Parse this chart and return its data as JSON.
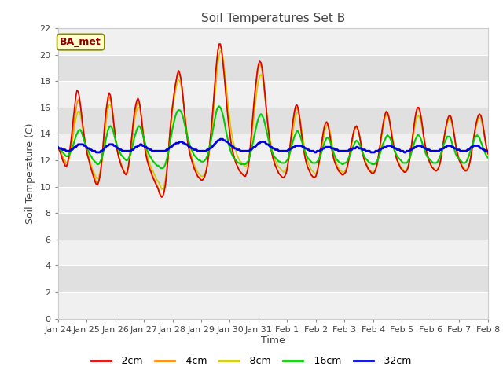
{
  "title": "Soil Temperatures Set B",
  "xlabel": "Time",
  "ylabel": "Soil Temperature (C)",
  "annotation": "BA_met",
  "ylim": [
    0,
    22
  ],
  "yticks": [
    0,
    2,
    4,
    6,
    8,
    10,
    12,
    14,
    16,
    18,
    20,
    22
  ],
  "xtick_labels": [
    "Jan 24",
    "Jan 25",
    "Jan 26",
    "Jan 27",
    "Jan 28",
    "Jan 29",
    "Jan 30",
    "Jan 31",
    "Feb 1",
    "Feb 2",
    "Feb 3",
    "Feb 4",
    "Feb 5",
    "Feb 6",
    "Feb 7",
    "Feb 8"
  ],
  "colors": {
    "-2cm": "#dd0000",
    "-4cm": "#ff8800",
    "-8cm": "#cccc00",
    "-16cm": "#00cc00",
    "-32cm": "#0000dd"
  },
  "legend_labels": [
    "-2cm",
    "-4cm",
    "-8cm",
    "-16cm",
    "-32cm"
  ],
  "fig_bg": "#ffffff",
  "plot_bg_light": "#f0f0f0",
  "plot_bg_dark": "#e0e0e0",
  "grid_color": "#ffffff",
  "n_points": 361,
  "t_2cm": [
    13.0,
    12.8,
    12.6,
    12.3,
    12.0,
    11.8,
    11.6,
    11.5,
    11.7,
    12.2,
    12.8,
    13.5,
    14.3,
    15.2,
    16.0,
    16.8,
    17.3,
    17.2,
    16.8,
    16.1,
    15.3,
    14.5,
    13.8,
    13.2,
    12.7,
    12.3,
    12.0,
    11.6,
    11.3,
    11.0,
    10.7,
    10.4,
    10.2,
    10.1,
    10.3,
    10.7,
    11.3,
    12.2,
    13.3,
    14.5,
    15.5,
    16.2,
    16.8,
    17.1,
    16.9,
    16.3,
    15.5,
    14.6,
    13.8,
    13.1,
    12.6,
    12.2,
    11.9,
    11.6,
    11.4,
    11.2,
    11.0,
    10.9,
    11.1,
    11.5,
    12.2,
    13.0,
    13.9,
    14.8,
    15.6,
    16.1,
    16.5,
    16.7,
    16.5,
    16.0,
    15.2,
    14.3,
    13.5,
    12.8,
    12.3,
    11.9,
    11.6,
    11.3,
    11.1,
    10.8,
    10.6,
    10.4,
    10.2,
    10.0,
    9.8,
    9.5,
    9.3,
    9.2,
    9.3,
    9.6,
    10.1,
    10.9,
    11.9,
    13.1,
    14.3,
    15.3,
    16.1,
    16.8,
    17.5,
    18.0,
    18.5,
    18.8,
    18.6,
    18.2,
    17.5,
    16.6,
    15.6,
    14.7,
    13.9,
    13.2,
    12.7,
    12.3,
    12.0,
    11.7,
    11.4,
    11.2,
    11.0,
    10.8,
    10.7,
    10.6,
    10.5,
    10.5,
    10.6,
    10.8,
    11.1,
    11.6,
    12.3,
    13.1,
    14.0,
    15.0,
    16.1,
    17.3,
    18.5,
    19.5,
    20.3,
    20.8,
    20.8,
    20.4,
    19.6,
    18.7,
    17.7,
    16.6,
    15.6,
    14.7,
    14.0,
    13.3,
    12.8,
    12.4,
    12.1,
    11.8,
    11.6,
    11.4,
    11.2,
    11.1,
    11.0,
    10.9,
    10.8,
    10.8,
    11.0,
    11.3,
    12.0,
    12.9,
    14.0,
    15.1,
    16.2,
    17.2,
    18.0,
    18.8,
    19.3,
    19.5,
    19.4,
    19.0,
    18.3,
    17.4,
    16.4,
    15.4,
    14.5,
    13.7,
    13.1,
    12.6,
    12.2,
    11.9,
    11.6,
    11.4,
    11.2,
    11.0,
    10.9,
    10.8,
    10.7,
    10.7,
    10.8,
    11.0,
    11.4,
    12.0,
    12.8,
    13.6,
    14.4,
    15.1,
    15.7,
    16.1,
    16.2,
    16.0,
    15.5,
    14.8,
    14.0,
    13.3,
    12.7,
    12.2,
    11.8,
    11.5,
    11.3,
    11.1,
    10.9,
    10.8,
    10.7,
    10.7,
    10.8,
    11.1,
    11.5,
    12.1,
    12.8,
    13.4,
    14.0,
    14.5,
    14.8,
    14.9,
    14.7,
    14.3,
    13.7,
    13.0,
    12.5,
    12.1,
    11.8,
    11.6,
    11.4,
    11.2,
    11.1,
    11.0,
    10.9,
    10.9,
    11.0,
    11.1,
    11.4,
    11.8,
    12.3,
    12.9,
    13.4,
    13.9,
    14.3,
    14.5,
    14.6,
    14.4,
    14.1,
    13.6,
    13.1,
    12.6,
    12.2,
    11.9,
    11.7,
    11.5,
    11.3,
    11.2,
    11.1,
    11.0,
    11.0,
    11.1,
    11.3,
    11.6,
    12.1,
    12.7,
    13.3,
    14.0,
    14.6,
    15.1,
    15.5,
    15.7,
    15.6,
    15.3,
    14.8,
    14.2,
    13.6,
    13.1,
    12.7,
    12.3,
    12.0,
    11.8,
    11.6,
    11.4,
    11.3,
    11.2,
    11.1,
    11.1,
    11.2,
    11.4,
    11.8,
    12.4,
    13.1,
    13.8,
    14.5,
    15.2,
    15.7,
    16.0,
    16.0,
    15.8,
    15.3,
    14.7,
    14.0,
    13.4,
    12.9,
    12.5,
    12.2,
    11.9,
    11.7,
    11.5,
    11.4,
    11.3,
    11.2,
    11.2,
    11.3,
    11.5,
    11.8,
    12.3,
    12.9,
    13.5,
    14.1,
    14.6,
    15.0,
    15.3,
    15.4,
    15.3,
    14.9,
    14.4,
    13.8,
    13.2,
    12.7,
    12.3,
    12.0,
    11.8,
    11.6,
    11.4,
    11.3,
    11.2,
    11.2,
    11.3,
    11.5,
    11.9,
    12.4,
    13.0,
    13.6,
    14.2,
    14.7,
    15.1,
    15.4,
    15.5,
    15.4,
    15.1,
    14.6,
    14.0,
    13.4,
    12.9,
    12.5,
    12.2,
    12.0,
    11.8,
    11.6,
    11.5,
    11.4,
    11.3
  ],
  "t_4cm": [
    13.0,
    12.8,
    12.6,
    12.4,
    12.2,
    12.0,
    11.8,
    11.6,
    11.7,
    12.0,
    12.4,
    13.0,
    13.7,
    14.5,
    15.2,
    15.8,
    16.3,
    16.6,
    16.5,
    16.1,
    15.4,
    14.6,
    13.9,
    13.3,
    12.8,
    12.4,
    12.1,
    11.7,
    11.4,
    11.1,
    10.9,
    10.6,
    10.4,
    10.2,
    10.4,
    10.7,
    11.2,
    12.0,
    13.1,
    14.2,
    15.2,
    15.9,
    16.5,
    16.8,
    16.6,
    16.2,
    15.5,
    14.7,
    13.9,
    13.2,
    12.7,
    12.3,
    12.0,
    11.7,
    11.4,
    11.2,
    11.0,
    10.9,
    11.0,
    11.4,
    12.0,
    12.8,
    13.7,
    14.6,
    15.3,
    15.8,
    16.2,
    16.4,
    16.3,
    15.9,
    15.2,
    14.4,
    13.6,
    12.9,
    12.4,
    12.0,
    11.7,
    11.4,
    11.2,
    10.9,
    10.7,
    10.5,
    10.3,
    10.1,
    9.9,
    9.6,
    9.4,
    9.2,
    9.3,
    9.7,
    10.2,
    11.0,
    12.0,
    13.2,
    14.4,
    15.3,
    16.1,
    16.8,
    17.5,
    18.0,
    18.4,
    18.6,
    18.5,
    18.1,
    17.4,
    16.6,
    15.7,
    14.8,
    14.0,
    13.3,
    12.8,
    12.4,
    12.1,
    11.8,
    11.5,
    11.3,
    11.0,
    10.8,
    10.7,
    10.6,
    10.5,
    10.5,
    10.6,
    10.8,
    11.1,
    11.5,
    12.1,
    12.9,
    13.8,
    14.8,
    15.9,
    17.0,
    18.2,
    19.3,
    20.3,
    20.8,
    20.8,
    20.4,
    19.7,
    18.8,
    17.8,
    16.8,
    15.8,
    14.9,
    14.1,
    13.4,
    12.9,
    12.5,
    12.1,
    11.8,
    11.6,
    11.4,
    11.2,
    11.1,
    11.0,
    10.9,
    10.8,
    10.8,
    11.0,
    11.3,
    11.9,
    12.7,
    13.7,
    14.8,
    15.9,
    16.9,
    17.8,
    18.5,
    19.0,
    19.3,
    19.2,
    18.8,
    18.1,
    17.2,
    16.3,
    15.3,
    14.5,
    13.7,
    13.1,
    12.6,
    12.2,
    11.9,
    11.6,
    11.4,
    11.2,
    11.0,
    10.9,
    10.8,
    10.7,
    10.7,
    10.8,
    11.0,
    11.3,
    11.9,
    12.6,
    13.4,
    14.2,
    14.9,
    15.5,
    15.9,
    16.0,
    15.8,
    15.4,
    14.7,
    14.0,
    13.3,
    12.7,
    12.2,
    11.8,
    11.5,
    11.3,
    11.1,
    10.9,
    10.8,
    10.7,
    10.7,
    10.8,
    11.1,
    11.5,
    12.1,
    12.8,
    13.4,
    14.0,
    14.5,
    14.8,
    14.9,
    14.8,
    14.4,
    13.8,
    13.2,
    12.6,
    12.1,
    11.8,
    11.6,
    11.4,
    11.2,
    11.1,
    11.0,
    10.9,
    10.9,
    11.0,
    11.2,
    11.4,
    11.8,
    12.3,
    12.9,
    13.4,
    13.9,
    14.3,
    14.5,
    14.6,
    14.4,
    14.1,
    13.6,
    13.1,
    12.6,
    12.2,
    11.9,
    11.7,
    11.5,
    11.3,
    11.2,
    11.1,
    11.0,
    11.0,
    11.1,
    11.3,
    11.6,
    12.1,
    12.7,
    13.3,
    14.0,
    14.6,
    15.1,
    15.5,
    15.7,
    15.6,
    15.3,
    14.8,
    14.2,
    13.6,
    13.1,
    12.7,
    12.3,
    12.0,
    11.8,
    11.6,
    11.4,
    11.3,
    11.2,
    11.1,
    11.1,
    11.2,
    11.4,
    11.8,
    12.4,
    13.1,
    13.8,
    14.5,
    15.1,
    15.6,
    15.9,
    15.9,
    15.7,
    15.3,
    14.7,
    14.0,
    13.4,
    12.9,
    12.5,
    12.2,
    11.9,
    11.7,
    11.5,
    11.4,
    11.3,
    11.2,
    11.2,
    11.3,
    11.5,
    11.8,
    12.3,
    12.9,
    13.5,
    14.1,
    14.6,
    15.0,
    15.3,
    15.4,
    15.3,
    14.9,
    14.4,
    13.8,
    13.2,
    12.7,
    12.3,
    12.0,
    11.8,
    11.6,
    11.4,
    11.3,
    11.2,
    11.2,
    11.3,
    11.5,
    11.9,
    12.4,
    13.0,
    13.6,
    14.2,
    14.7,
    15.1,
    15.4,
    15.5,
    15.4,
    15.1,
    14.6,
    14.0,
    13.4,
    12.9,
    12.5,
    12.2,
    12.0,
    11.8,
    11.6,
    11.5,
    11.4,
    11.3
  ],
  "t_8cm": [
    13.0,
    12.9,
    12.7,
    12.5,
    12.3,
    12.1,
    12.0,
    11.8,
    11.9,
    12.1,
    12.4,
    12.9,
    13.4,
    14.0,
    14.6,
    15.1,
    15.5,
    15.7,
    15.7,
    15.4,
    14.9,
    14.3,
    13.7,
    13.2,
    12.8,
    12.5,
    12.2,
    11.9,
    11.6,
    11.3,
    11.1,
    10.9,
    10.7,
    10.6,
    10.7,
    11.0,
    11.4,
    12.0,
    12.8,
    13.7,
    14.6,
    15.3,
    15.9,
    16.2,
    16.2,
    15.9,
    15.3,
    14.6,
    13.9,
    13.2,
    12.7,
    12.3,
    12.0,
    11.7,
    11.5,
    11.3,
    11.1,
    11.0,
    11.1,
    11.4,
    11.9,
    12.6,
    13.4,
    14.2,
    14.9,
    15.4,
    15.8,
    16.0,
    16.0,
    15.7,
    15.2,
    14.5,
    13.8,
    13.2,
    12.7,
    12.3,
    12.0,
    11.7,
    11.5,
    11.3,
    11.1,
    10.9,
    10.7,
    10.5,
    10.4,
    10.2,
    10.0,
    9.8,
    9.8,
    10.1,
    10.5,
    11.2,
    12.0,
    13.0,
    14.0,
    14.9,
    15.7,
    16.4,
    17.0,
    17.5,
    17.9,
    18.1,
    18.0,
    17.7,
    17.2,
    16.5,
    15.7,
    14.9,
    14.2,
    13.5,
    13.0,
    12.6,
    12.3,
    12.0,
    11.7,
    11.5,
    11.3,
    11.1,
    11.0,
    10.9,
    10.8,
    10.8,
    10.8,
    11.0,
    11.2,
    11.6,
    12.1,
    12.8,
    13.6,
    14.5,
    15.4,
    16.4,
    17.4,
    18.4,
    19.3,
    19.9,
    20.3,
    20.3,
    19.9,
    19.3,
    18.5,
    17.6,
    16.7,
    15.8,
    15.0,
    14.3,
    13.8,
    13.3,
    13.0,
    12.7,
    12.4,
    12.2,
    12.0,
    11.9,
    11.8,
    11.7,
    11.6,
    11.5,
    11.6,
    11.8,
    12.2,
    12.8,
    13.5,
    14.3,
    15.2,
    16.0,
    16.8,
    17.5,
    18.0,
    18.4,
    18.5,
    18.3,
    17.8,
    17.1,
    16.3,
    15.5,
    14.7,
    14.0,
    13.4,
    12.9,
    12.5,
    12.2,
    12.0,
    11.8,
    11.6,
    11.5,
    11.4,
    11.3,
    11.2,
    11.1,
    11.2,
    11.3,
    11.5,
    11.9,
    12.4,
    13.0,
    13.7,
    14.3,
    14.9,
    15.3,
    15.6,
    15.6,
    15.4,
    15.0,
    14.4,
    13.8,
    13.2,
    12.7,
    12.3,
    12.0,
    11.7,
    11.5,
    11.3,
    11.2,
    11.1,
    11.0,
    11.0,
    11.2,
    11.5,
    11.9,
    12.4,
    13.0,
    13.5,
    14.0,
    14.4,
    14.6,
    14.7,
    14.5,
    14.1,
    13.6,
    13.0,
    12.5,
    12.1,
    11.8,
    11.6,
    11.4,
    11.3,
    11.2,
    11.1,
    11.1,
    11.1,
    11.3,
    11.5,
    11.8,
    12.2,
    12.7,
    13.2,
    13.7,
    14.1,
    14.4,
    14.5,
    14.4,
    14.1,
    13.7,
    13.2,
    12.7,
    12.3,
    12.0,
    11.8,
    11.6,
    11.4,
    11.3,
    11.2,
    11.1,
    11.1,
    11.2,
    11.3,
    11.6,
    12.0,
    12.5,
    13.1,
    13.7,
    14.3,
    14.8,
    15.2,
    15.5,
    15.5,
    15.3,
    14.9,
    14.4,
    13.8,
    13.3,
    12.8,
    12.4,
    12.1,
    11.9,
    11.7,
    11.5,
    11.4,
    11.3,
    11.2,
    11.2,
    11.3,
    11.5,
    11.8,
    12.3,
    12.9,
    13.5,
    14.1,
    14.6,
    15.0,
    15.3,
    15.4,
    15.2,
    14.9,
    14.4,
    13.8,
    13.3,
    12.8,
    12.4,
    12.1,
    11.9,
    11.7,
    11.5,
    11.4,
    11.3,
    11.2,
    11.2,
    11.3,
    11.5,
    11.8,
    12.3,
    12.8,
    13.4,
    13.9,
    14.4,
    14.8,
    15.0,
    15.1,
    15.0,
    14.7,
    14.3,
    13.8,
    13.2,
    12.8,
    12.4,
    12.1,
    11.9,
    11.7,
    11.5,
    11.4,
    11.3,
    11.3,
    11.4,
    11.6,
    11.9,
    12.4,
    13.0,
    13.5,
    14.0,
    14.5,
    14.8,
    15.1,
    15.2,
    15.1,
    14.8,
    14.4,
    13.8,
    13.3,
    12.8,
    12.5,
    12.2,
    12.0,
    11.8,
    11.6,
    11.5,
    11.4,
    11.3
  ],
  "t_16cm": [
    13.0,
    12.9,
    12.8,
    12.7,
    12.6,
    12.5,
    12.4,
    12.3,
    12.3,
    12.4,
    12.5,
    12.7,
    12.9,
    13.2,
    13.5,
    13.8,
    14.0,
    14.2,
    14.3,
    14.3,
    14.1,
    13.8,
    13.5,
    13.2,
    13.0,
    12.8,
    12.6,
    12.4,
    12.3,
    12.1,
    12.0,
    11.9,
    11.8,
    11.7,
    11.7,
    11.8,
    12.0,
    12.2,
    12.6,
    13.0,
    13.5,
    13.9,
    14.3,
    14.5,
    14.6,
    14.5,
    14.3,
    14.0,
    13.6,
    13.3,
    13.0,
    12.8,
    12.6,
    12.4,
    12.3,
    12.2,
    12.1,
    12.0,
    12.0,
    12.1,
    12.3,
    12.5,
    12.9,
    13.3,
    13.7,
    14.0,
    14.3,
    14.5,
    14.6,
    14.5,
    14.3,
    14.0,
    13.6,
    13.3,
    13.0,
    12.7,
    12.5,
    12.3,
    12.2,
    12.0,
    11.9,
    11.8,
    11.7,
    11.6,
    11.6,
    11.5,
    11.4,
    11.4,
    11.4,
    11.5,
    11.7,
    12.0,
    12.4,
    12.9,
    13.4,
    13.9,
    14.4,
    14.8,
    15.2,
    15.5,
    15.7,
    15.8,
    15.8,
    15.7,
    15.5,
    15.2,
    14.8,
    14.4,
    14.0,
    13.6,
    13.3,
    13.0,
    12.8,
    12.6,
    12.4,
    12.3,
    12.2,
    12.1,
    12.0,
    12.0,
    11.9,
    11.9,
    11.9,
    12.0,
    12.1,
    12.3,
    12.6,
    13.0,
    13.4,
    13.9,
    14.4,
    14.9,
    15.4,
    15.8,
    16.0,
    16.1,
    16.0,
    15.8,
    15.5,
    15.1,
    14.6,
    14.1,
    13.7,
    13.2,
    12.9,
    12.6,
    12.4,
    12.2,
    12.1,
    12.0,
    11.9,
    11.8,
    11.8,
    11.7,
    11.7,
    11.7,
    11.7,
    11.7,
    11.8,
    11.9,
    12.1,
    12.4,
    12.8,
    13.2,
    13.7,
    14.1,
    14.5,
    14.9,
    15.2,
    15.4,
    15.5,
    15.4,
    15.2,
    14.9,
    14.5,
    14.1,
    13.7,
    13.3,
    13.0,
    12.7,
    12.5,
    12.3,
    12.2,
    12.1,
    12.0,
    11.9,
    11.9,
    11.8,
    11.8,
    11.8,
    11.8,
    11.9,
    12.0,
    12.2,
    12.5,
    12.8,
    13.2,
    13.5,
    13.8,
    14.0,
    14.2,
    14.2,
    14.0,
    13.8,
    13.5,
    13.2,
    12.9,
    12.6,
    12.4,
    12.2,
    12.1,
    12.0,
    11.9,
    11.8,
    11.8,
    11.8,
    11.8,
    11.9,
    12.0,
    12.2,
    12.4,
    12.7,
    13.0,
    13.3,
    13.5,
    13.7,
    13.7,
    13.6,
    13.4,
    13.1,
    12.8,
    12.5,
    12.3,
    12.1,
    12.0,
    11.9,
    11.8,
    11.8,
    11.7,
    11.7,
    11.8,
    11.8,
    11.9,
    12.1,
    12.3,
    12.5,
    12.8,
    13.0,
    13.2,
    13.4,
    13.5,
    13.4,
    13.3,
    13.1,
    12.8,
    12.6,
    12.4,
    12.2,
    12.1,
    12.0,
    11.9,
    11.8,
    11.8,
    11.7,
    11.7,
    11.7,
    11.8,
    11.9,
    12.1,
    12.3,
    12.6,
    12.9,
    13.2,
    13.4,
    13.6,
    13.8,
    13.9,
    13.8,
    13.7,
    13.5,
    13.2,
    12.9,
    12.7,
    12.5,
    12.3,
    12.2,
    12.1,
    12.0,
    11.9,
    11.8,
    11.8,
    11.8,
    11.8,
    11.9,
    12.1,
    12.3,
    12.6,
    12.9,
    13.2,
    13.5,
    13.7,
    13.9,
    13.9,
    13.8,
    13.6,
    13.3,
    13.0,
    12.8,
    12.5,
    12.3,
    12.2,
    12.1,
    12.0,
    11.9,
    11.8,
    11.8,
    11.8,
    11.8,
    11.9,
    12.1,
    12.3,
    12.6,
    12.9,
    13.2,
    13.4,
    13.6,
    13.8,
    13.8,
    13.8,
    13.6,
    13.3,
    13.0,
    12.8,
    12.5,
    12.3,
    12.2,
    12.1,
    12.0,
    11.9,
    11.8,
    11.8,
    11.8,
    11.9,
    12.1,
    12.3,
    12.6,
    12.9,
    13.2,
    13.4,
    13.7,
    13.8,
    13.9,
    13.8,
    13.7,
    13.4,
    13.2,
    12.9,
    12.7,
    12.5,
    12.3,
    12.2,
    12.1,
    12.0,
    11.9,
    11.8,
    11.8
  ],
  "t_32cm": [
    13.0,
    12.9,
    12.9,
    12.9,
    12.8,
    12.8,
    12.8,
    12.7,
    12.7,
    12.7,
    12.7,
    12.8,
    12.8,
    12.9,
    13.0,
    13.0,
    13.1,
    13.2,
    13.2,
    13.2,
    13.2,
    13.2,
    13.1,
    13.1,
    13.0,
    12.9,
    12.9,
    12.8,
    12.8,
    12.7,
    12.7,
    12.7,
    12.6,
    12.6,
    12.6,
    12.6,
    12.7,
    12.7,
    12.8,
    12.9,
    13.0,
    13.1,
    13.1,
    13.2,
    13.2,
    13.2,
    13.2,
    13.1,
    13.1,
    13.0,
    12.9,
    12.9,
    12.8,
    12.8,
    12.7,
    12.7,
    12.7,
    12.7,
    12.7,
    12.7,
    12.7,
    12.7,
    12.8,
    12.8,
    12.9,
    13.0,
    13.0,
    13.1,
    13.1,
    13.2,
    13.2,
    13.1,
    13.1,
    13.0,
    13.0,
    12.9,
    12.9,
    12.8,
    12.8,
    12.7,
    12.7,
    12.7,
    12.7,
    12.7,
    12.7,
    12.7,
    12.7,
    12.7,
    12.7,
    12.7,
    12.7,
    12.8,
    12.8,
    12.9,
    13.0,
    13.0,
    13.1,
    13.2,
    13.2,
    13.3,
    13.3,
    13.3,
    13.4,
    13.4,
    13.4,
    13.3,
    13.3,
    13.2,
    13.2,
    13.1,
    13.0,
    13.0,
    12.9,
    12.9,
    12.8,
    12.8,
    12.8,
    12.7,
    12.7,
    12.7,
    12.7,
    12.7,
    12.7,
    12.7,
    12.7,
    12.8,
    12.8,
    12.9,
    12.9,
    13.0,
    13.1,
    13.2,
    13.3,
    13.4,
    13.5,
    13.5,
    13.6,
    13.6,
    13.6,
    13.5,
    13.5,
    13.4,
    13.4,
    13.3,
    13.2,
    13.1,
    13.1,
    13.0,
    12.9,
    12.9,
    12.8,
    12.8,
    12.8,
    12.7,
    12.7,
    12.7,
    12.7,
    12.7,
    12.7,
    12.7,
    12.7,
    12.8,
    12.8,
    12.9,
    13.0,
    13.0,
    13.1,
    13.2,
    13.3,
    13.3,
    13.4,
    13.4,
    13.4,
    13.4,
    13.3,
    13.2,
    13.2,
    13.1,
    13.0,
    13.0,
    12.9,
    12.9,
    12.8,
    12.8,
    12.8,
    12.7,
    12.7,
    12.7,
    12.7,
    12.7,
    12.7,
    12.7,
    12.7,
    12.8,
    12.8,
    12.9,
    12.9,
    13.0,
    13.0,
    13.1,
    13.1,
    13.1,
    13.1,
    13.1,
    13.1,
    13.0,
    13.0,
    12.9,
    12.9,
    12.8,
    12.8,
    12.7,
    12.7,
    12.7,
    12.7,
    12.6,
    12.6,
    12.7,
    12.7,
    12.7,
    12.8,
    12.8,
    12.9,
    12.9,
    13.0,
    13.0,
    13.0,
    13.0,
    13.0,
    12.9,
    12.9,
    12.9,
    12.8,
    12.8,
    12.8,
    12.7,
    12.7,
    12.7,
    12.7,
    12.7,
    12.7,
    12.7,
    12.7,
    12.7,
    12.8,
    12.8,
    12.8,
    12.9,
    12.9,
    12.9,
    13.0,
    13.0,
    12.9,
    12.9,
    12.9,
    12.8,
    12.8,
    12.8,
    12.7,
    12.7,
    12.7,
    12.7,
    12.6,
    12.6,
    12.6,
    12.6,
    12.7,
    12.7,
    12.7,
    12.8,
    12.8,
    12.9,
    12.9,
    13.0,
    13.0,
    13.0,
    13.1,
    13.1,
    13.1,
    13.1,
    13.0,
    13.0,
    12.9,
    12.9,
    12.8,
    12.8,
    12.8,
    12.7,
    12.7,
    12.7,
    12.6,
    12.6,
    12.7,
    12.7,
    12.7,
    12.8,
    12.8,
    12.9,
    12.9,
    13.0,
    13.0,
    13.1,
    13.1,
    13.1,
    13.1,
    13.0,
    13.0,
    12.9,
    12.9,
    12.8,
    12.8,
    12.8,
    12.7,
    12.7,
    12.7,
    12.7,
    12.7,
    12.7,
    12.7,
    12.7,
    12.8,
    12.8,
    12.9,
    12.9,
    13.0,
    13.0,
    13.1,
    13.1,
    13.1,
    13.1,
    13.0,
    13.0,
    12.9,
    12.9,
    12.8,
    12.8,
    12.8,
    12.7,
    12.7,
    12.7,
    12.7,
    12.7,
    12.7,
    12.8,
    12.8,
    12.9,
    13.0,
    13.0,
    13.1,
    13.1,
    13.1,
    13.1,
    13.1,
    13.0,
    12.9,
    12.9,
    12.8,
    12.8,
    12.7,
    12.7,
    12.7,
    12.7,
    12.6,
    12.6,
    12.6,
    12.7
  ]
}
